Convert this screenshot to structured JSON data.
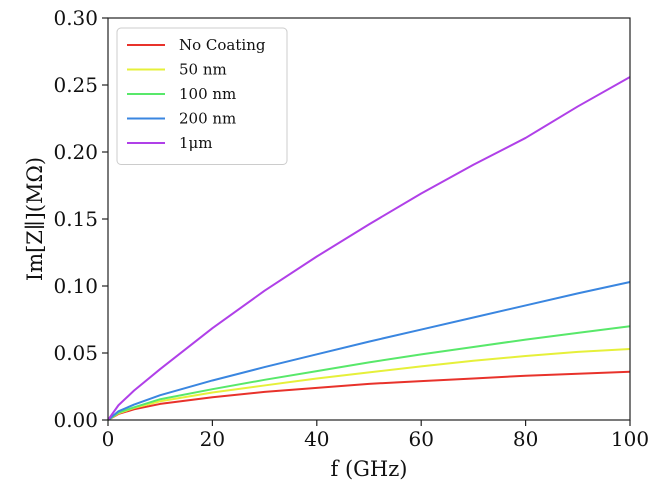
{
  "chart_data": {
    "type": "line",
    "title": "",
    "xlabel": "f (GHz)",
    "ylabel": "Im[Z∥](MΩ)",
    "xlim": [
      0,
      100
    ],
    "ylim": [
      0,
      0.3
    ],
    "xticks": [
      "0",
      "20",
      "40",
      "60",
      "80",
      "100"
    ],
    "yticks": [
      "0.00",
      "0.05",
      "0.10",
      "0.15",
      "0.20",
      "0.25",
      "0.30"
    ],
    "grid": false,
    "legend_position": "top-left",
    "x": [
      0,
      2,
      5,
      10,
      20,
      30,
      40,
      50,
      60,
      70,
      80,
      90,
      100
    ],
    "series": [
      {
        "name": "No Coating",
        "color": "#e8322b",
        "values": [
          0,
          0.0045,
          0.008,
          0.012,
          0.017,
          0.021,
          0.024,
          0.027,
          0.029,
          0.031,
          0.033,
          0.0345,
          0.036
        ]
      },
      {
        "name": "50 nm",
        "color": "#e6f03a",
        "values": [
          0,
          0.005,
          0.009,
          0.014,
          0.0205,
          0.0258,
          0.031,
          0.0355,
          0.04,
          0.0442,
          0.0478,
          0.0508,
          0.053
        ]
      },
      {
        "name": "100 nm",
        "color": "#58e86a",
        "values": [
          0,
          0.0055,
          0.0095,
          0.0155,
          0.023,
          0.03,
          0.0365,
          0.043,
          0.049,
          0.0545,
          0.06,
          0.065,
          0.07
        ]
      },
      {
        "name": "200 nm",
        "color": "#3a86e0",
        "values": [
          0,
          0.0065,
          0.0115,
          0.0185,
          0.0295,
          0.0395,
          0.049,
          0.0585,
          0.0675,
          0.0765,
          0.0855,
          0.0945,
          0.103
        ]
      },
      {
        "name": "1μm",
        "color": "#b040e8",
        "values": [
          0,
          0.011,
          0.022,
          0.038,
          0.0685,
          0.0965,
          0.122,
          0.146,
          0.169,
          0.1905,
          0.2105,
          0.234,
          0.256
        ]
      }
    ]
  }
}
